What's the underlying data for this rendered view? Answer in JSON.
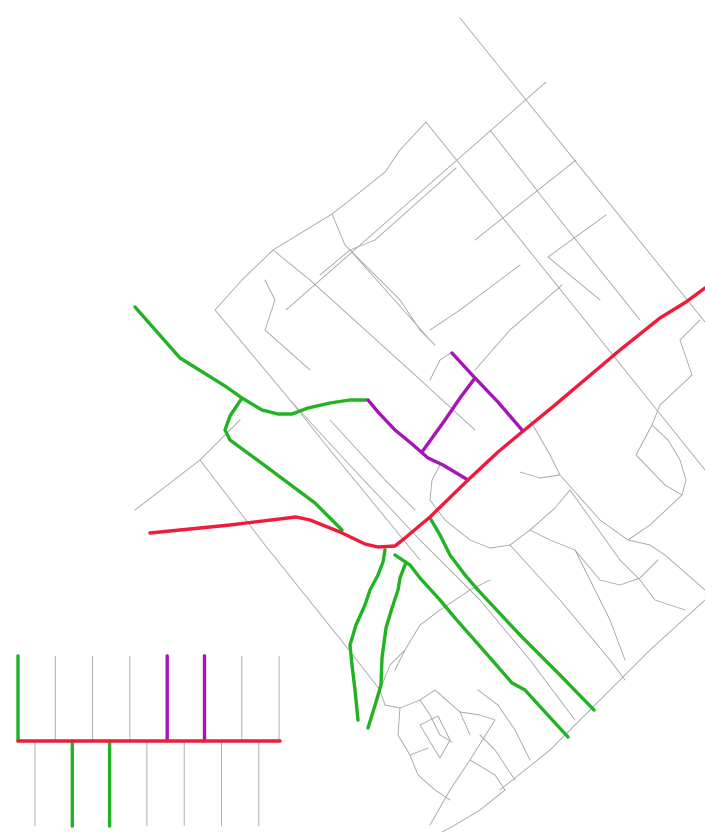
{
  "colors": {
    "background": "#ffffff",
    "street": "#a6a6a6",
    "route_red": "#ee1c3a",
    "route_green": "#22b322",
    "route_purple": "#a614b8"
  },
  "routes": [
    {
      "id": "red-main",
      "color_key": "route_red"
    },
    {
      "id": "green-west",
      "color_key": "route_green"
    },
    {
      "id": "green-south-1",
      "color_key": "route_green"
    },
    {
      "id": "green-south-2",
      "color_key": "route_green"
    },
    {
      "id": "green-southeast",
      "color_key": "route_green"
    },
    {
      "id": "purple-north",
      "color_key": "route_purple"
    },
    {
      "id": "purple-mid",
      "color_key": "route_purple"
    }
  ],
  "legend": {
    "main_line_color_key": "route_red",
    "top_branches": [
      "route_green",
      "street",
      "street",
      "street",
      "route_purple",
      "route_purple",
      "street",
      "street",
      "street",
      "street"
    ],
    "bottom_branches": [
      "street",
      "route_green",
      "route_green",
      "street",
      "street",
      "street",
      "street"
    ]
  }
}
